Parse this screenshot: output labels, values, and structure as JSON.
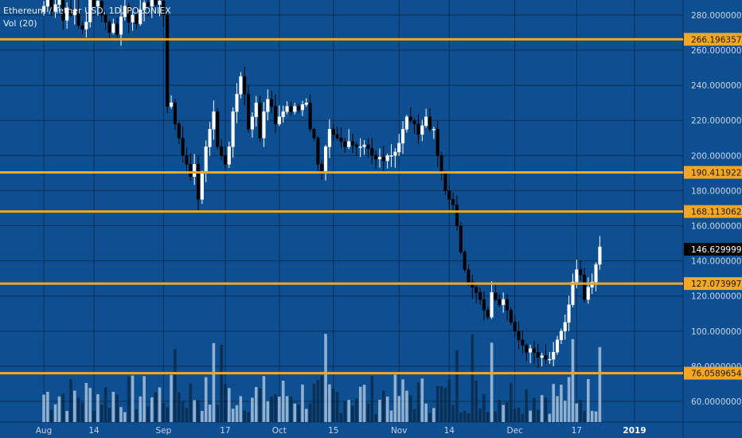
{
  "chart_data": {
    "type": "candlestick",
    "title": "Ethereum / Tether USD, 1D, POLONIEX",
    "volume_label": "Vol (20)",
    "y_range": [
      50,
      290
    ],
    "y_ticks": [
      "60.00000000",
      "80.00000000",
      "100.00000000",
      "120.00000000",
      "140.00000000",
      "160.00000000",
      "180.00000000",
      "200.00000000",
      "220.00000000",
      "240.00000000",
      "260.00000000",
      "280.00000000"
    ],
    "y_tick_values": [
      60,
      80,
      100,
      120,
      140,
      160,
      180,
      200,
      220,
      240,
      260,
      280
    ],
    "x_ticks": [
      {
        "label": "Aug",
        "day": 0
      },
      {
        "label": "14",
        "day": 13
      },
      {
        "label": "Sep",
        "day": 31
      },
      {
        "label": "17",
        "day": 47
      },
      {
        "label": "Oct",
        "day": 61
      },
      {
        "label": "15",
        "day": 75
      },
      {
        "label": "Nov",
        "day": 92
      },
      {
        "label": "14",
        "day": 105
      },
      {
        "label": "Dec",
        "day": 122
      },
      {
        "label": "17",
        "day": 138
      },
      {
        "label": "2019",
        "day": 153
      }
    ],
    "horizontal_levels": [
      {
        "label": "266.19635721",
        "value": 266.19635721
      },
      {
        "label": "190.41192269",
        "value": 190.41192269
      },
      {
        "label": "168.11306233",
        "value": 168.11306233
      },
      {
        "label": "127.07399722",
        "value": 127.07399722
      },
      {
        "label": "76.05896545",
        "value": 76.05896545
      }
    ],
    "last_price": {
      "label": "146.62999999",
      "value": 146.63
    },
    "closes": [
      285,
      290,
      282,
      286,
      289,
      277,
      284,
      280,
      283,
      274,
      272,
      276,
      289,
      285,
      288,
      280,
      276,
      270,
      275,
      269,
      279,
      285,
      276,
      280,
      275,
      283,
      287,
      285,
      289,
      286,
      288,
      280,
      228,
      230,
      218,
      210,
      200,
      195,
      188,
      195,
      175,
      190,
      205,
      215,
      225,
      205,
      200,
      195,
      205,
      225,
      235,
      245,
      235,
      215,
      222,
      230,
      210,
      225,
      232,
      228,
      218,
      222,
      225,
      228,
      225,
      228,
      226,
      229,
      230,
      215,
      210,
      195,
      190,
      205,
      215,
      212,
      210,
      208,
      205,
      208,
      206,
      205,
      205,
      206,
      204,
      200,
      198,
      199,
      197,
      200,
      200,
      202,
      207,
      215,
      222,
      220,
      218,
      212,
      217,
      222,
      215,
      215,
      200,
      190,
      180,
      175,
      172,
      160,
      145,
      135,
      128,
      125,
      122,
      118,
      112,
      108,
      122,
      118,
      115,
      118,
      112,
      105,
      100,
      95,
      92,
      88,
      90,
      88,
      85,
      86,
      84,
      84,
      88,
      95,
      100,
      105,
      115,
      128,
      135,
      132,
      118,
      125,
      128,
      138,
      148
    ]
  }
}
